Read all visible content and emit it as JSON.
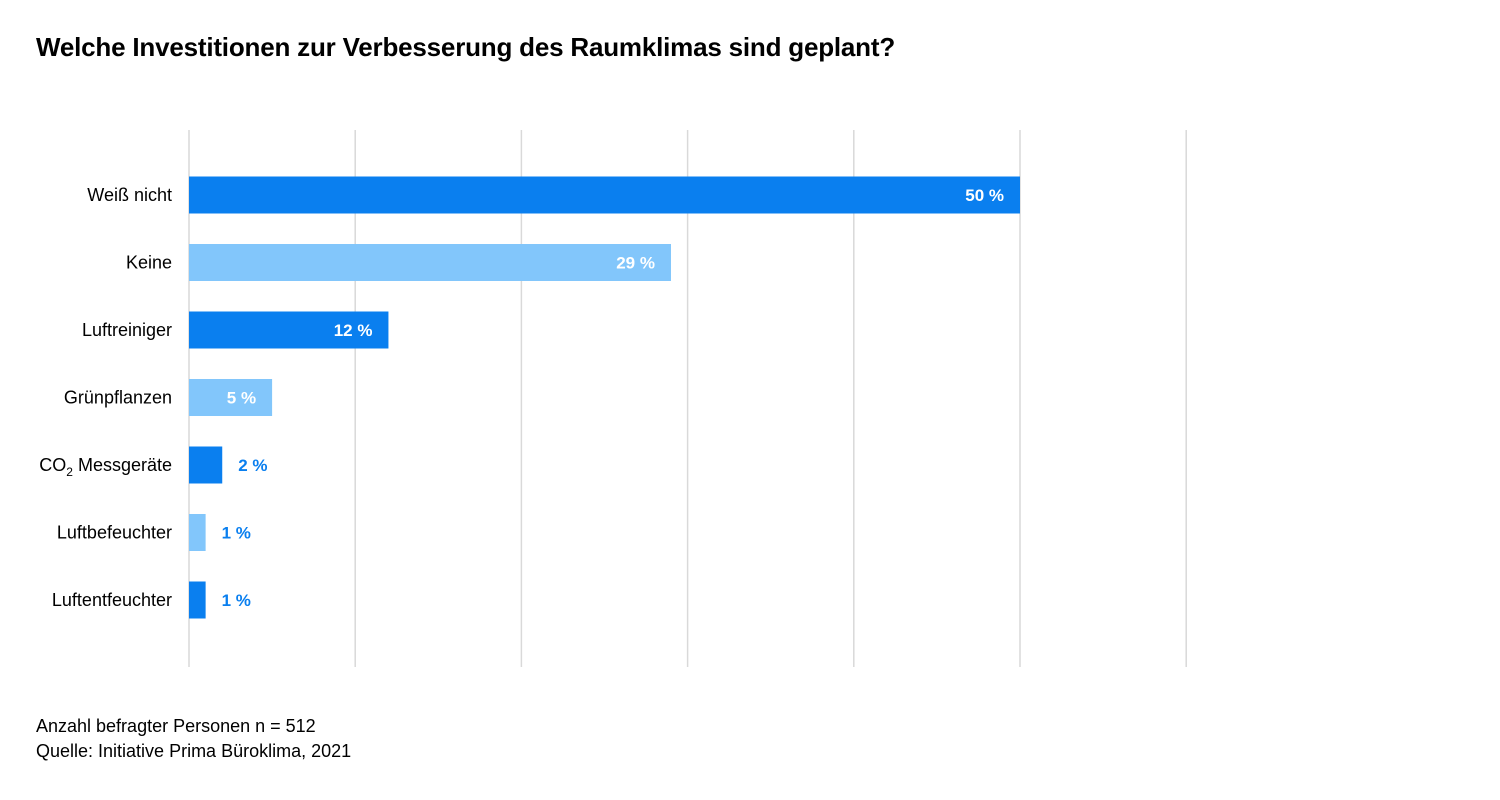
{
  "title": "Welche Investitionen zur Verbesserung des Raumklimas sind geplant?",
  "footer": {
    "sample": "Anzahl befragter Personen n = 512",
    "source": "Quelle: Initiative Prima Büroklima, 2021"
  },
  "colors": {
    "dark_bar": "#0a7fef",
    "light_bar": "#82c6fb",
    "grid": "#d9d9d9",
    "outside_label": "#0a7fef",
    "inside_label": "#ffffff"
  },
  "chart_data": {
    "type": "bar",
    "orientation": "horizontal",
    "title": "Welche Investitionen zur Verbesserung des Raumklimas sind geplant?",
    "xlabel": "",
    "ylabel": "",
    "xlim": [
      0,
      60
    ],
    "grid": true,
    "categories": [
      {
        "label": "Weiß nicht",
        "subscript": "",
        "suffix": ""
      },
      {
        "label": "Keine",
        "subscript": "",
        "suffix": ""
      },
      {
        "label": "Luftreiniger",
        "subscript": "",
        "suffix": ""
      },
      {
        "label": "Grünpflanzen",
        "subscript": "",
        "suffix": ""
      },
      {
        "label": "CO",
        "subscript": "2",
        "suffix": " Messgeräte"
      },
      {
        "label": "Luftbefeuchter",
        "subscript": "",
        "suffix": ""
      },
      {
        "label": "Luftentfeuchter",
        "subscript": "",
        "suffix": ""
      }
    ],
    "values": [
      50,
      29,
      12,
      5,
      2,
      1,
      1
    ],
    "value_labels": [
      "50 %",
      "29 %",
      "12 %",
      "5 %",
      "2 %",
      "1 %",
      "1 %"
    ],
    "bar_shades": [
      "dark",
      "light",
      "dark",
      "light",
      "dark",
      "light",
      "dark"
    ]
  }
}
